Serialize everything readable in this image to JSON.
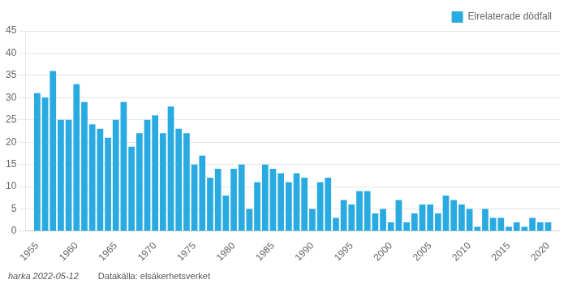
{
  "chart_data": {
    "type": "bar",
    "x": [
      1955,
      1956,
      1957,
      1958,
      1959,
      1960,
      1961,
      1962,
      1963,
      1964,
      1965,
      1966,
      1967,
      1968,
      1969,
      1970,
      1971,
      1972,
      1973,
      1974,
      1975,
      1976,
      1977,
      1978,
      1979,
      1980,
      1981,
      1982,
      1983,
      1984,
      1985,
      1986,
      1987,
      1988,
      1989,
      1990,
      1991,
      1992,
      1993,
      1994,
      1995,
      1996,
      1997,
      1998,
      1999,
      2000,
      2001,
      2002,
      2003,
      2004,
      2005,
      2006,
      2007,
      2008,
      2009,
      2010,
      2011,
      2012,
      2013,
      2014,
      2015,
      2016,
      2017,
      2018,
      2019,
      2020
    ],
    "series": [
      {
        "name": "Elrelaterade dödfall",
        "color": "#29abe2",
        "values": [
          31,
          30,
          36,
          25,
          25,
          33,
          29,
          24,
          23,
          21,
          25,
          29,
          19,
          22,
          25,
          26,
          22,
          28,
          23,
          22,
          15,
          17,
          12,
          14,
          8,
          14,
          15,
          5,
          11,
          15,
          14,
          13,
          11,
          13,
          12,
          5,
          11,
          12,
          3,
          7,
          6,
          9,
          9,
          4,
          5,
          2,
          7,
          2,
          4,
          6,
          6,
          4,
          8,
          7,
          6,
          5,
          1,
          5,
          3,
          3,
          1,
          2,
          1,
          3,
          2,
          2
        ]
      }
    ],
    "xlim": [
      1953.5,
      2021.5
    ],
    "xticks": [
      1955,
      1960,
      1965,
      1970,
      1975,
      1980,
      1985,
      1990,
      1995,
      2000,
      2005,
      2010,
      2015,
      2020
    ],
    "ylim": [
      0,
      45
    ],
    "yticks": [
      0,
      5,
      10,
      15,
      20,
      25,
      30,
      35,
      40,
      45
    ],
    "grid": "y",
    "legend": "upper right",
    "annotations": [
      "harka 2022-05-12",
      "Datakälla: elsäkerhetsverket"
    ]
  }
}
